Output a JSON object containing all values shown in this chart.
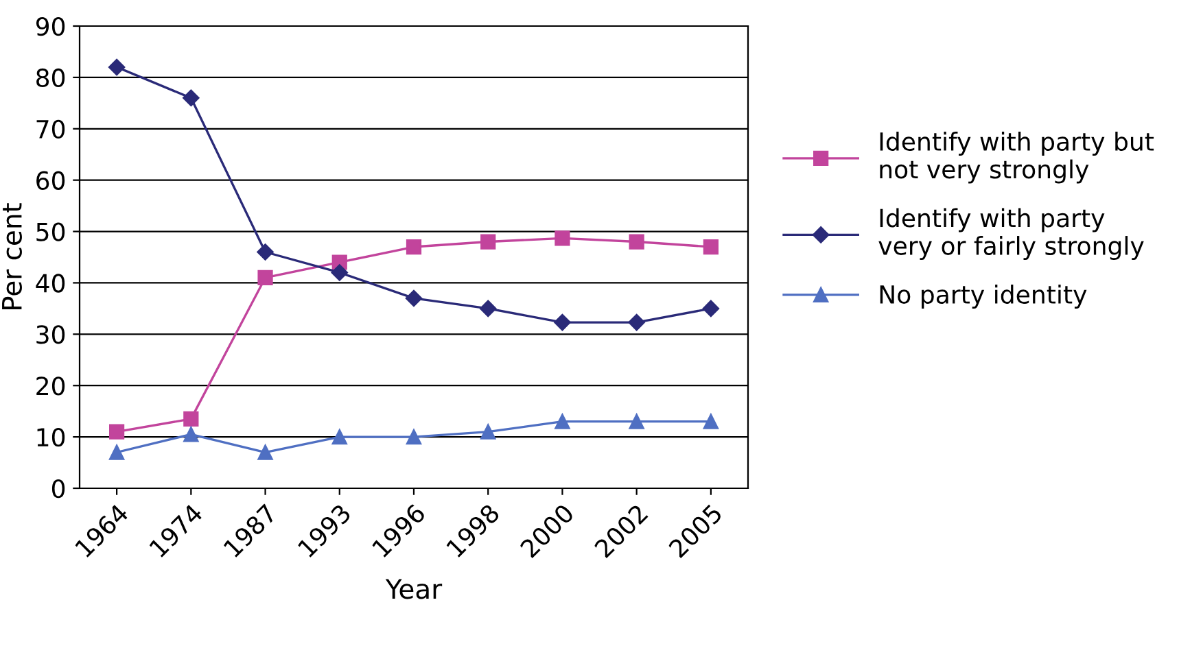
{
  "chart_data": {
    "type": "line",
    "xlabel": "Year",
    "ylabel": "Per cent",
    "categories": [
      "1964",
      "1974",
      "1987",
      "1993",
      "1996",
      "1998",
      "2000",
      "2002",
      "2005"
    ],
    "series": [
      {
        "name": "Identify with party but not very strongly",
        "color": "#c2449c",
        "marker": "square",
        "values": [
          11,
          13.5,
          41,
          44,
          47,
          48,
          48.7,
          48,
          47
        ]
      },
      {
        "name": "Identify with party very or fairly strongly",
        "color": "#2a2a78",
        "marker": "diamond",
        "values": [
          82,
          76,
          46,
          42,
          37,
          35,
          32.3,
          32.3,
          35
        ]
      },
      {
        "name": "No party identity",
        "color": "#4f6fc2",
        "marker": "triangle",
        "values": [
          7,
          10.5,
          7,
          10,
          10,
          11,
          13,
          13,
          13
        ]
      }
    ],
    "ylim": [
      0,
      90
    ],
    "yticks": [
      0,
      10,
      20,
      30,
      40,
      50,
      60,
      70,
      80,
      90
    ],
    "grid": "y",
    "legend": "right",
    "line_style": "solid"
  }
}
